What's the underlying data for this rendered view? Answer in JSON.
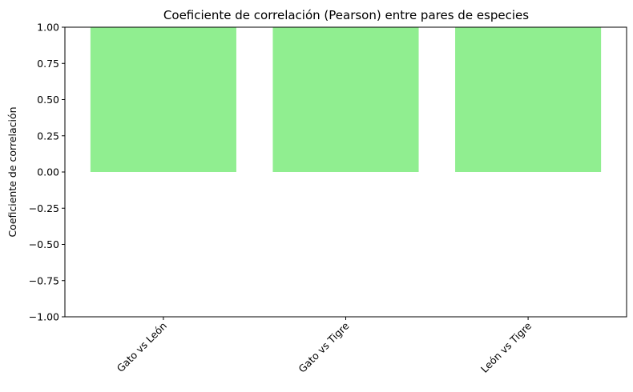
{
  "chart_data": {
    "type": "bar",
    "title": "Coeficiente de correlación (Pearson) entre pares de especies",
    "xlabel": "",
    "ylabel": "Coeficiente de correlación",
    "categories": [
      "Gato vs León",
      "Gato vs Tigre",
      "León vs Tigre"
    ],
    "values": [
      1.0,
      1.0,
      1.0
    ],
    "ylim": [
      -1.0,
      1.0
    ],
    "yticks": [
      -1.0,
      -0.75,
      -0.5,
      -0.25,
      0.0,
      0.25,
      0.5,
      0.75,
      1.0
    ],
    "ytick_labels": [
      "−1.00",
      "−0.75",
      "−0.50",
      "−0.25",
      "0.00",
      "0.25",
      "0.50",
      "0.75",
      "1.00"
    ],
    "bar_color": "#90ee90",
    "grid": false,
    "legend": "none"
  }
}
